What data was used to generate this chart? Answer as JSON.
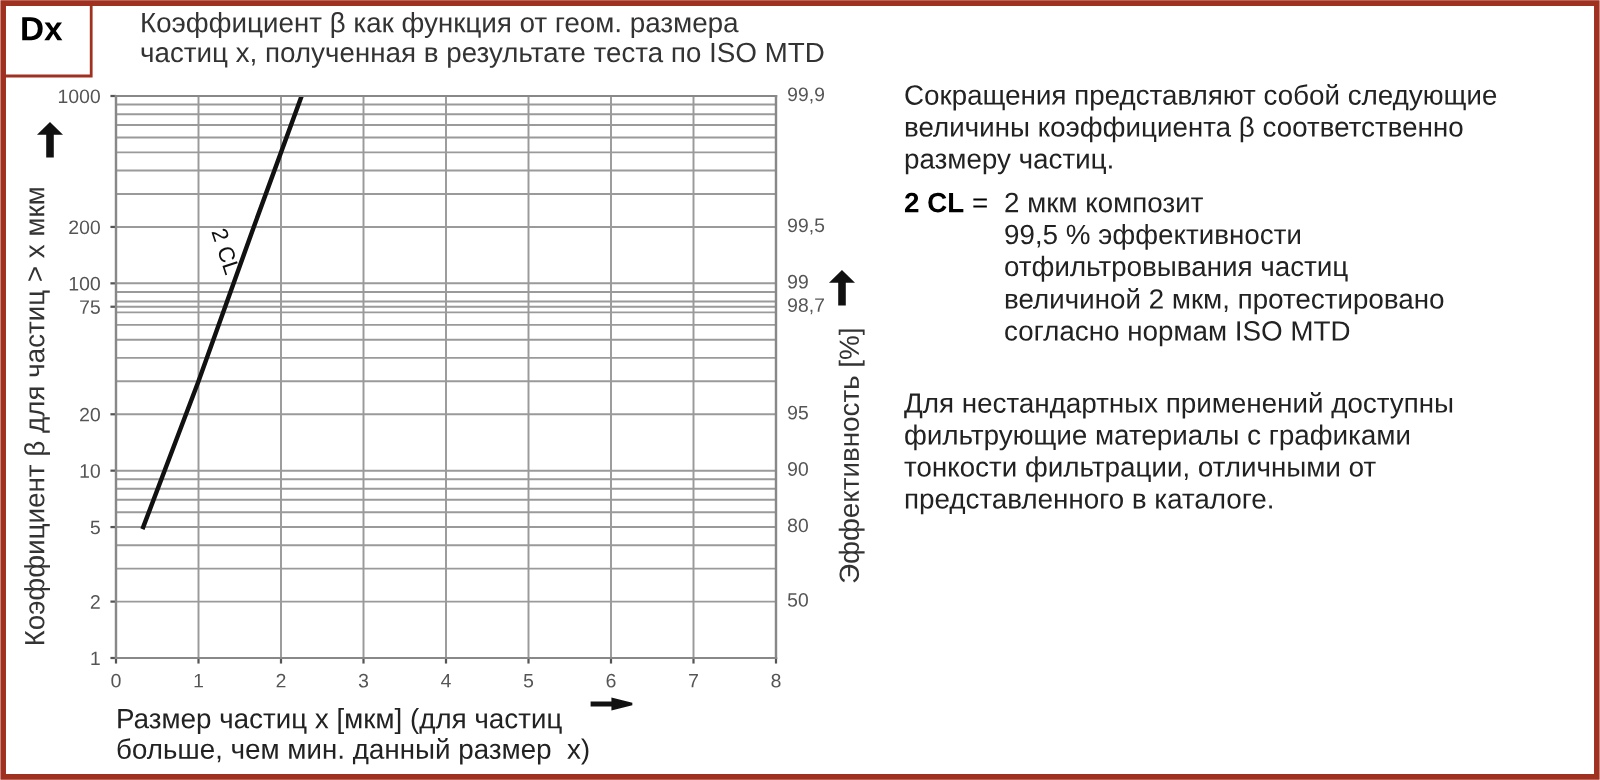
{
  "chart_data": {
    "type": "line",
    "title": "Коэффициент β как функция от геом. размера\nчастиц x, полученная в результате теста по ISO MTD",
    "xlabel": "Размер частиц x [мкм] (для частиц\nбольше, чем мин. данный размер  x)",
    "ylabel": "Коэффициент β для частиц > x мкм",
    "y2label": "Эффективность [%]",
    "series": [
      {
        "name": "2 CL",
        "color": "#111111",
        "x": [
          0.33,
          1,
          1.67,
          2.25
        ],
        "values": [
          5,
          30,
          200,
          1000
        ]
      }
    ],
    "log": "y",
    "xlim": [
      0,
      8
    ],
    "xticks": [
      0,
      1,
      2,
      3,
      4,
      5,
      6,
      7,
      8
    ],
    "ylim": [
      1,
      1000
    ],
    "yticks": [
      1,
      2,
      5,
      10,
      20,
      75,
      100,
      200,
      1000
    ],
    "grid": true,
    "line_style": "solid",
    "annotations": [
      "Dx",
      "50",
      "80",
      "90",
      "95",
      "98,7",
      "99",
      "99,5",
      "99,9",
      "Сокращения представляют собой следующие\nвеличины коэффициента β соответственно\nразмеру частиц.",
      "2 CL",
      "=",
      "2 мкм композит\n99,5 % эффективности\nотфильтровывания частиц\nвеличиной 2 мкм, протестировано\nсогласно нормам ISO MTD",
      "Для нестандартных применений доступны\nфильтрующие материалы с графиками\nтонкости фильтрации, отличными от\nпредставленного в каталоге."
    ]
  }
}
